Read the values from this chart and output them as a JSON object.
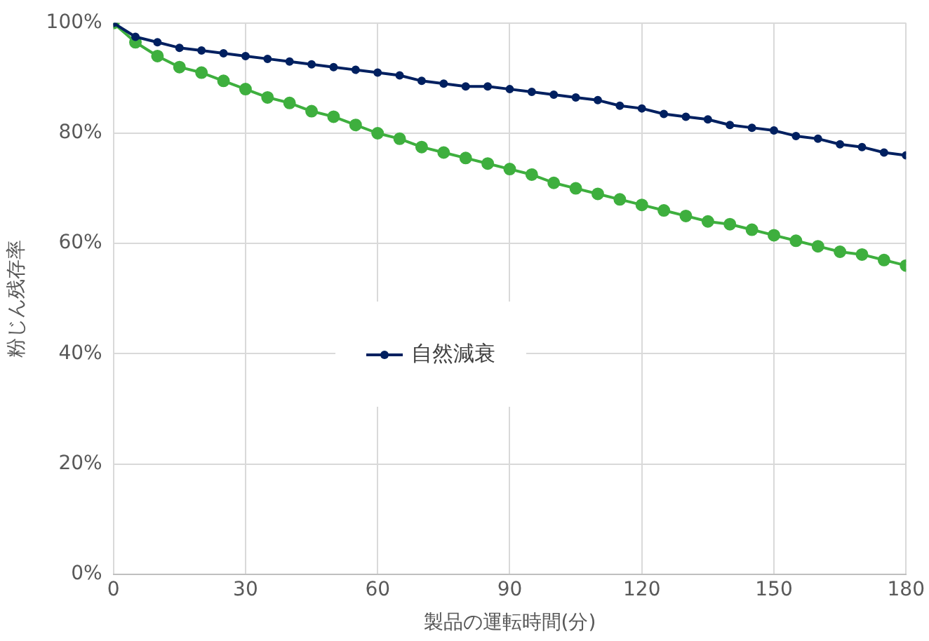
{
  "chart_data": {
    "type": "line",
    "xlabel": "製品の運転時間(分)",
    "ylabel": "粉じん残存率",
    "x": [
      0,
      5,
      10,
      15,
      20,
      25,
      30,
      35,
      40,
      45,
      50,
      55,
      60,
      65,
      70,
      75,
      80,
      85,
      90,
      95,
      100,
      105,
      110,
      115,
      120,
      125,
      130,
      135,
      140,
      145,
      150,
      155,
      160,
      165,
      170,
      175,
      180
    ],
    "series": [
      {
        "name": "自然減衰",
        "color": "#002060",
        "values": [
          100,
          97.5,
          96.5,
          95.5,
          95,
          94.5,
          94,
          93.5,
          93,
          92.5,
          92,
          91.5,
          91,
          90.5,
          89.5,
          89,
          88.5,
          88.5,
          88,
          87.5,
          87,
          86.5,
          86,
          85,
          84.5,
          83.5,
          83,
          82.5,
          81.5,
          81,
          80.5,
          79.5,
          79,
          78,
          77.5,
          76.5,
          76
        ]
      },
      {
        "color": "#3eaf3e",
        "values": [
          100,
          96.5,
          94,
          92,
          91,
          89.5,
          88,
          86.5,
          85.5,
          84,
          83,
          81.5,
          80,
          79,
          77.5,
          76.5,
          75.5,
          74.5,
          73.5,
          72.5,
          71,
          70,
          69,
          68,
          67,
          66,
          65,
          64,
          63.5,
          62.5,
          61.5,
          60.5,
          59.5,
          58.5,
          58,
          57,
          56
        ]
      }
    ],
    "xlim": [
      0,
      180
    ],
    "xticks": [
      0,
      30,
      60,
      90,
      120,
      150,
      180
    ],
    "ylim": [
      0,
      100
    ],
    "yticks": [
      {
        "value": 0,
        "label": "0%"
      },
      {
        "value": 20,
        "label": "20%"
      },
      {
        "value": 40,
        "label": "40%"
      },
      {
        "value": 60,
        "label": "60%"
      },
      {
        "value": 80,
        "label": "80%"
      },
      {
        "value": 100,
        "label": "100%"
      }
    ],
    "grid": true,
    "legend": "center",
    "marker": "circle",
    "line_style": "solid"
  }
}
